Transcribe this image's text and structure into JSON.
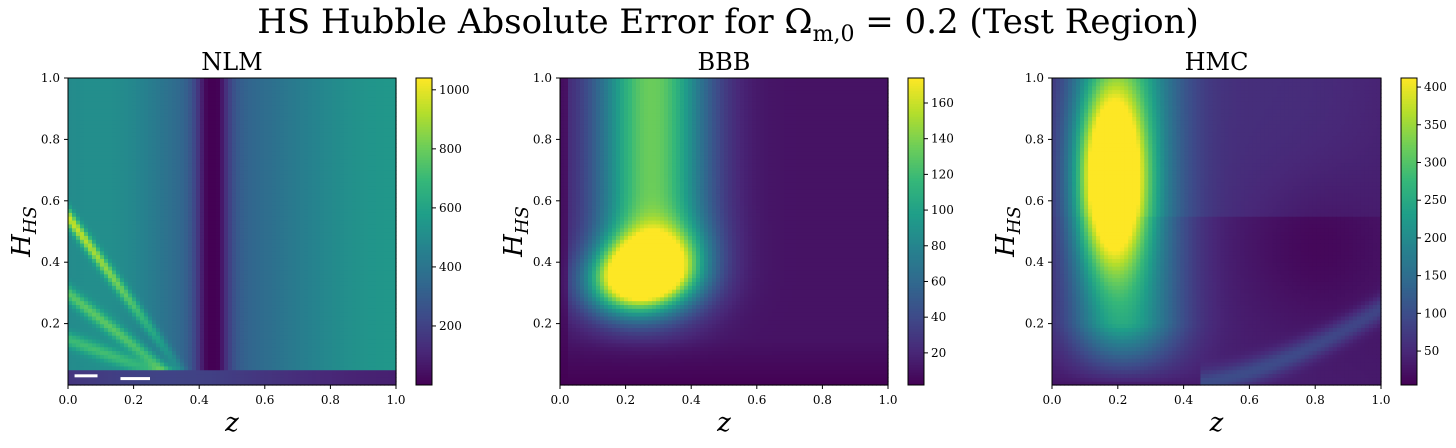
{
  "figure": {
    "suptitle_prefix": "HS Hubble Absolute Error for Ω",
    "suptitle_sub": "m,0",
    "suptitle_suffix": " = 0.2 (Test Region)"
  },
  "chart_data": [
    {
      "type": "heatmap",
      "title": "NLM",
      "xlabel": "z",
      "ylabel": "H",
      "ylabel_sub": "HS",
      "xlim": [
        0.0,
        1.0
      ],
      "ylim": [
        0.0,
        1.0
      ],
      "xticks": [
        "0.0",
        "0.2",
        "0.4",
        "0.6",
        "0.8",
        "1.0"
      ],
      "yticks": [
        "0.2",
        "0.4",
        "0.6",
        "0.8",
        "1.0"
      ],
      "colorbar": {
        "min": 0,
        "max": 1040,
        "ticks": [
          "200",
          "400",
          "600",
          "800",
          "1000"
        ],
        "tick_values": [
          200,
          400,
          600,
          800,
          1000
        ]
      },
      "colormap": "viridis"
    },
    {
      "type": "heatmap",
      "title": "BBB",
      "xlabel": "z",
      "ylabel": "H",
      "ylabel_sub": "HS",
      "xlim": [
        0.0,
        1.0
      ],
      "ylim": [
        0.0,
        1.0
      ],
      "xticks": [
        "0.0",
        "0.2",
        "0.4",
        "0.6",
        "0.8",
        "1.0"
      ],
      "yticks": [
        "0.2",
        "0.4",
        "0.6",
        "0.8",
        "1.0"
      ],
      "colorbar": {
        "min": 2,
        "max": 174,
        "ticks": [
          "20",
          "40",
          "60",
          "80",
          "100",
          "120",
          "140",
          "160"
        ],
        "tick_values": [
          20,
          40,
          60,
          80,
          100,
          120,
          140,
          160
        ]
      },
      "colormap": "viridis"
    },
    {
      "type": "heatmap",
      "title": "HMC",
      "xlabel": "z",
      "ylabel": "H",
      "ylabel_sub": "HS",
      "xlim": [
        0.0,
        1.0
      ],
      "ylim": [
        0.0,
        1.0
      ],
      "xticks": [
        "0.0",
        "0.2",
        "0.4",
        "0.6",
        "0.8",
        "1.0"
      ],
      "yticks": [
        "0.2",
        "0.4",
        "0.6",
        "0.8",
        "1.0"
      ],
      "colorbar": {
        "min": 5,
        "max": 412,
        "ticks": [
          "50",
          "100",
          "150",
          "200",
          "250",
          "300",
          "350",
          "400"
        ],
        "tick_values": [
          50,
          100,
          150,
          200,
          250,
          300,
          350,
          400
        ]
      },
      "colormap": "viridis"
    }
  ]
}
